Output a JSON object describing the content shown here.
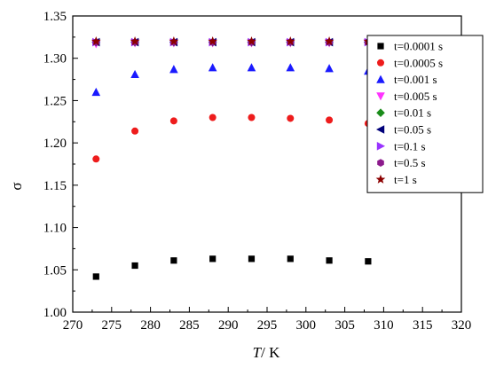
{
  "chart_data": {
    "type": "scatter",
    "title": "",
    "xlabel": "T",
    "xlabel_unit": "/ K",
    "ylabel": "σ",
    "xlim": [
      270,
      320
    ],
    "ylim": [
      1.0,
      1.35
    ],
    "xticks": [
      270,
      275,
      280,
      285,
      290,
      295,
      300,
      305,
      310,
      315,
      320
    ],
    "yticks": [
      1.0,
      1.05,
      1.1,
      1.15,
      1.2,
      1.25,
      1.3,
      1.35
    ],
    "grid": false,
    "legend_position": "top-right",
    "x": [
      273,
      278,
      283,
      288,
      293,
      298,
      303,
      308
    ],
    "series": [
      {
        "name": "t=0.0001 s",
        "marker": "square",
        "color": "#000000",
        "values": [
          1.042,
          1.055,
          1.061,
          1.063,
          1.063,
          1.063,
          1.061,
          1.06
        ]
      },
      {
        "name": "t=0.0005 s",
        "marker": "circle",
        "color": "#ee1c1c",
        "values": [
          1.181,
          1.214,
          1.226,
          1.23,
          1.23,
          1.229,
          1.227,
          1.223
        ]
      },
      {
        "name": "t=0.001 s",
        "marker": "triangle-up",
        "color": "#1a1aff",
        "values": [
          1.26,
          1.281,
          1.287,
          1.289,
          1.289,
          1.289,
          1.288,
          1.285
        ]
      },
      {
        "name": "t=0.005 s",
        "marker": "triangle-down",
        "color": "#ff33ff",
        "values": [
          1.317,
          1.318,
          1.318,
          1.318,
          1.318,
          1.318,
          1.318,
          1.318
        ]
      },
      {
        "name": "t=0.01 s",
        "marker": "diamond",
        "color": "#1a8c1a",
        "values": [
          1.319,
          1.319,
          1.319,
          1.319,
          1.319,
          1.319,
          1.319,
          1.319
        ]
      },
      {
        "name": "t=0.05 s",
        "marker": "triangle-left",
        "color": "#00007a",
        "values": [
          1.319,
          1.319,
          1.319,
          1.319,
          1.319,
          1.319,
          1.319,
          1.319
        ]
      },
      {
        "name": "t=0.1 s",
        "marker": "triangle-right",
        "color": "#9933ff",
        "values": [
          1.319,
          1.319,
          1.319,
          1.319,
          1.319,
          1.319,
          1.319,
          1.319
        ]
      },
      {
        "name": "t=0.5 s",
        "marker": "hexagon",
        "color": "#8c1a8c",
        "values": [
          1.319,
          1.319,
          1.319,
          1.319,
          1.319,
          1.319,
          1.319,
          1.319
        ]
      },
      {
        "name": "t=1 s",
        "marker": "star",
        "color": "#8c0000",
        "values": [
          1.32,
          1.32,
          1.32,
          1.32,
          1.32,
          1.32,
          1.32,
          1.32
        ]
      }
    ]
  }
}
